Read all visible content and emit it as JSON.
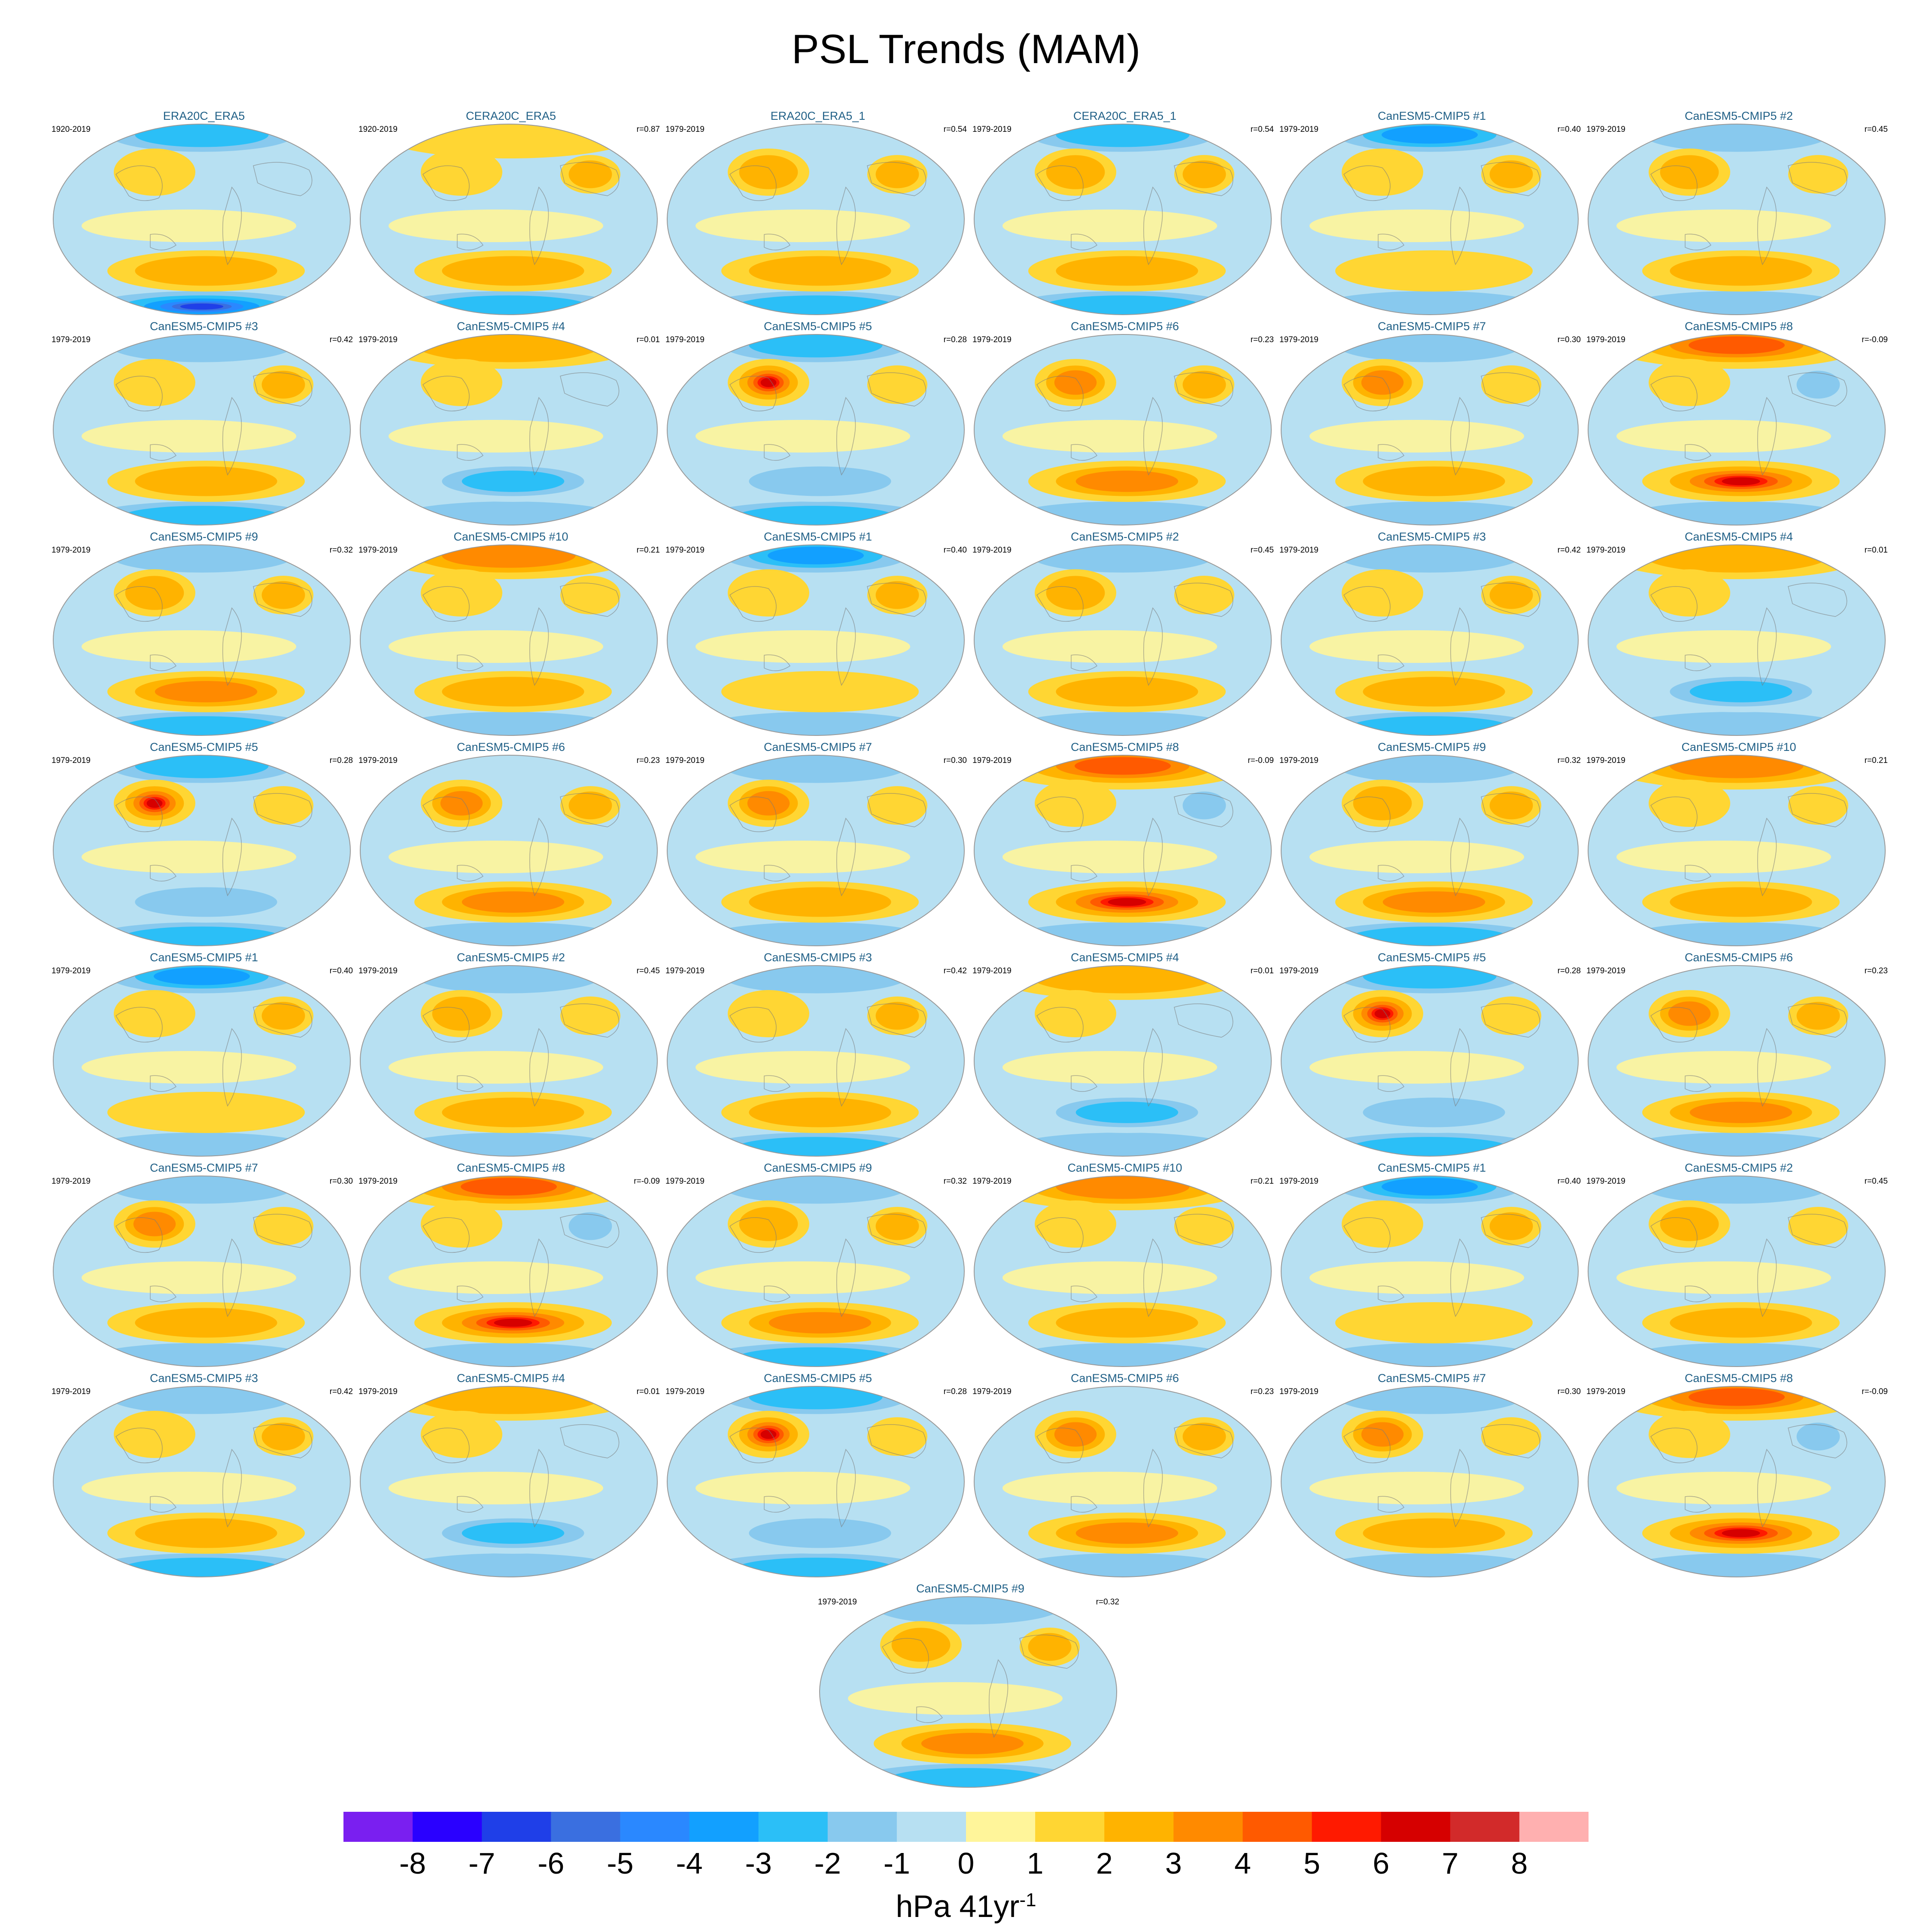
{
  "chart_data": {
    "type": "heatmap",
    "title": "PSL Trends (MAM)",
    "colorbar": {
      "ticks": [
        "-8",
        "-7",
        "-6",
        "-5",
        "-4",
        "-3",
        "-2",
        "-1",
        "0",
        "1",
        "2",
        "3",
        "4",
        "5",
        "6",
        "7",
        "8"
      ],
      "colors": [
        "#7a1ff0",
        "#2a00ff",
        "#1f3fe8",
        "#3a6fe0",
        "#2a88ff",
        "#12a0ff",
        "#2bbff7",
        "#88c9ee",
        "#b7e0f2",
        "#fff59a",
        "#ffd633",
        "#ffb300",
        "#ff8a00",
        "#ff5a00",
        "#ff1a00",
        "#d60000",
        "#d22a2a",
        "#ffb0b0"
      ],
      "units_main": "hPa 41yr",
      "units_sup": "-1"
    },
    "panels": [
      {
        "title": "ERA20C_ERA5",
        "period": "1920-2019",
        "corr": "",
        "pattern": {
          "north": -3,
          "n_pac": 1,
          "n_atl": 0,
          "s_mid": 2,
          "s_ring": -7
        }
      },
      {
        "title": "CERA20C_ERA5",
        "period": "1920-2019",
        "corr": "r=0.87",
        "pattern": {
          "north": 1,
          "n_pac": 1,
          "n_atl": 2,
          "s_mid": 2,
          "s_ring": -3
        }
      },
      {
        "title": "ERA20C_ERA5_1",
        "period": "1979-2019",
        "corr": "r=0.54",
        "pattern": {
          "north": -1,
          "n_pac": 2,
          "n_atl": 2,
          "s_mid": 2,
          "s_ring": -3
        }
      },
      {
        "title": "CERA20C_ERA5_1",
        "period": "1979-2019",
        "corr": "r=0.54",
        "pattern": {
          "north": -3,
          "n_pac": 2,
          "n_atl": 2,
          "s_mid": 2,
          "s_ring": -3
        }
      },
      {
        "title": "CanESM5-CMIP5 #1",
        "period": "1979-2019",
        "corr": "r=0.40",
        "pattern": {
          "north": -4,
          "n_pac": 1,
          "n_atl": 2,
          "s_mid": 1,
          "s_ring": -2
        }
      },
      {
        "title": "CanESM5-CMIP5 #2",
        "period": "1979-2019",
        "corr": "r=0.45",
        "pattern": {
          "north": -2,
          "n_pac": 2,
          "n_atl": 1,
          "s_mid": 2,
          "s_ring": -2
        }
      },
      {
        "title": "CanESM5-CMIP5 #3",
        "period": "1979-2019",
        "corr": "r=0.42",
        "pattern": {
          "north": -2,
          "n_pac": 1,
          "n_atl": 2,
          "s_mid": 2,
          "s_ring": -3
        }
      },
      {
        "title": "CanESM5-CMIP5 #4",
        "period": "1979-2019",
        "corr": "r=0.01",
        "pattern": {
          "north": 2,
          "n_pac": 1,
          "n_atl": -1,
          "s_mid": -3,
          "s_ring": -2
        }
      },
      {
        "title": "CanESM5-CMIP5 #5",
        "period": "1979-2019",
        "corr": "r=0.28",
        "pattern": {
          "north": -3,
          "n_pac": 6,
          "n_atl": 1,
          "s_mid": -2,
          "s_ring": -3
        }
      },
      {
        "title": "CanESM5-CMIP5 #6",
        "period": "1979-2019",
        "corr": "r=0.23",
        "pattern": {
          "north": -1,
          "n_pac": 3,
          "n_atl": 2,
          "s_mid": 3,
          "s_ring": -2
        }
      },
      {
        "title": "CanESM5-CMIP5 #7",
        "period": "1979-2019",
        "corr": "r=0.30",
        "pattern": {
          "north": -2,
          "n_pac": 3,
          "n_atl": 1,
          "s_mid": 2,
          "s_ring": -2
        }
      },
      {
        "title": "CanESM5-CMIP5 #8",
        "period": "1979-2019",
        "corr": "r=-0.09",
        "pattern": {
          "north": 4,
          "n_pac": 1,
          "n_atl": -2,
          "s_mid": 6,
          "s_ring": -2
        }
      },
      {
        "title": "CanESM5-CMIP5 #9",
        "period": "1979-2019",
        "corr": "r=0.32",
        "pattern": {
          "north": -2,
          "n_pac": 2,
          "n_atl": 2,
          "s_mid": 3,
          "s_ring": -3
        }
      },
      {
        "title": "CanESM5-CMIP5 #10",
        "period": "1979-2019",
        "corr": "r=0.21",
        "pattern": {
          "north": 3,
          "n_pac": 1,
          "n_atl": 1,
          "s_mid": 2,
          "s_ring": -2
        }
      },
      {
        "title": "CanESM5-CMIP5 #1",
        "period": "1979-2019",
        "corr": "r=0.40",
        "pattern": {
          "north": -4,
          "n_pac": 1,
          "n_atl": 2,
          "s_mid": 1,
          "s_ring": -2
        }
      },
      {
        "title": "CanESM5-CMIP5 #2",
        "period": "1979-2019",
        "corr": "r=0.45",
        "pattern": {
          "north": -2,
          "n_pac": 2,
          "n_atl": 1,
          "s_mid": 2,
          "s_ring": -2
        }
      },
      {
        "title": "CanESM5-CMIP5 #3",
        "period": "1979-2019",
        "corr": "r=0.42",
        "pattern": {
          "north": -2,
          "n_pac": 1,
          "n_atl": 2,
          "s_mid": 2,
          "s_ring": -3
        }
      },
      {
        "title": "CanESM5-CMIP5 #4",
        "period": "1979-2019",
        "corr": "r=0.01",
        "pattern": {
          "north": 2,
          "n_pac": 1,
          "n_atl": -1,
          "s_mid": -3,
          "s_ring": -2
        }
      },
      {
        "title": "CanESM5-CMIP5 #5",
        "period": "1979-2019",
        "corr": "r=0.28",
        "pattern": {
          "north": -3,
          "n_pac": 6,
          "n_atl": 1,
          "s_mid": -2,
          "s_ring": -3
        }
      },
      {
        "title": "CanESM5-CMIP5 #6",
        "period": "1979-2019",
        "corr": "r=0.23",
        "pattern": {
          "north": -1,
          "n_pac": 3,
          "n_atl": 2,
          "s_mid": 3,
          "s_ring": -2
        }
      },
      {
        "title": "CanESM5-CMIP5 #7",
        "period": "1979-2019",
        "corr": "r=0.30",
        "pattern": {
          "north": -2,
          "n_pac": 3,
          "n_atl": 1,
          "s_mid": 2,
          "s_ring": -2
        }
      },
      {
        "title": "CanESM5-CMIP5 #8",
        "period": "1979-2019",
        "corr": "r=-0.09",
        "pattern": {
          "north": 4,
          "n_pac": 1,
          "n_atl": -2,
          "s_mid": 6,
          "s_ring": -2
        }
      },
      {
        "title": "CanESM5-CMIP5 #9",
        "period": "1979-2019",
        "corr": "r=0.32",
        "pattern": {
          "north": -2,
          "n_pac": 2,
          "n_atl": 2,
          "s_mid": 3,
          "s_ring": -3
        }
      },
      {
        "title": "CanESM5-CMIP5 #10",
        "period": "1979-2019",
        "corr": "r=0.21",
        "pattern": {
          "north": 3,
          "n_pac": 1,
          "n_atl": 1,
          "s_mid": 2,
          "s_ring": -2
        }
      },
      {
        "title": "CanESM5-CMIP5 #1",
        "period": "1979-2019",
        "corr": "r=0.40",
        "pattern": {
          "north": -4,
          "n_pac": 1,
          "n_atl": 2,
          "s_mid": 1,
          "s_ring": -2
        }
      },
      {
        "title": "CanESM5-CMIP5 #2",
        "period": "1979-2019",
        "corr": "r=0.45",
        "pattern": {
          "north": -2,
          "n_pac": 2,
          "n_atl": 1,
          "s_mid": 2,
          "s_ring": -2
        }
      },
      {
        "title": "CanESM5-CMIP5 #3",
        "period": "1979-2019",
        "corr": "r=0.42",
        "pattern": {
          "north": -2,
          "n_pac": 1,
          "n_atl": 2,
          "s_mid": 2,
          "s_ring": -3
        }
      },
      {
        "title": "CanESM5-CMIP5 #4",
        "period": "1979-2019",
        "corr": "r=0.01",
        "pattern": {
          "north": 2,
          "n_pac": 1,
          "n_atl": -1,
          "s_mid": -3,
          "s_ring": -2
        }
      },
      {
        "title": "CanESM5-CMIP5 #5",
        "period": "1979-2019",
        "corr": "r=0.28",
        "pattern": {
          "north": -3,
          "n_pac": 6,
          "n_atl": 1,
          "s_mid": -2,
          "s_ring": -3
        }
      },
      {
        "title": "CanESM5-CMIP5 #6",
        "period": "1979-2019",
        "corr": "r=0.23",
        "pattern": {
          "north": -1,
          "n_pac": 3,
          "n_atl": 2,
          "s_mid": 3,
          "s_ring": -2
        }
      },
      {
        "title": "CanESM5-CMIP5 #7",
        "period": "1979-2019",
        "corr": "r=0.30",
        "pattern": {
          "north": -2,
          "n_pac": 3,
          "n_atl": 1,
          "s_mid": 2,
          "s_ring": -2
        }
      },
      {
        "title": "CanESM5-CMIP5 #8",
        "period": "1979-2019",
        "corr": "r=-0.09",
        "pattern": {
          "north": 4,
          "n_pac": 1,
          "n_atl": -2,
          "s_mid": 6,
          "s_ring": -2
        }
      },
      {
        "title": "CanESM5-CMIP5 #9",
        "period": "1979-2019",
        "corr": "r=0.32",
        "pattern": {
          "north": -2,
          "n_pac": 2,
          "n_atl": 2,
          "s_mid": 3,
          "s_ring": -3
        }
      },
      {
        "title": "CanESM5-CMIP5 #10",
        "period": "1979-2019",
        "corr": "r=0.21",
        "pattern": {
          "north": 3,
          "n_pac": 1,
          "n_atl": 1,
          "s_mid": 2,
          "s_ring": -2
        }
      },
      {
        "title": "CanESM5-CMIP5 #1",
        "period": "1979-2019",
        "corr": "r=0.40",
        "pattern": {
          "north": -4,
          "n_pac": 1,
          "n_atl": 2,
          "s_mid": 1,
          "s_ring": -2
        }
      },
      {
        "title": "CanESM5-CMIP5 #2",
        "period": "1979-2019",
        "corr": "r=0.45",
        "pattern": {
          "north": -2,
          "n_pac": 2,
          "n_atl": 1,
          "s_mid": 2,
          "s_ring": -2
        }
      },
      {
        "title": "CanESM5-CMIP5 #3",
        "period": "1979-2019",
        "corr": "r=0.42",
        "pattern": {
          "north": -2,
          "n_pac": 1,
          "n_atl": 2,
          "s_mid": 2,
          "s_ring": -3
        }
      },
      {
        "title": "CanESM5-CMIP5 #4",
        "period": "1979-2019",
        "corr": "r=0.01",
        "pattern": {
          "north": 2,
          "n_pac": 1,
          "n_atl": -1,
          "s_mid": -3,
          "s_ring": -2
        }
      },
      {
        "title": "CanESM5-CMIP5 #5",
        "period": "1979-2019",
        "corr": "r=0.28",
        "pattern": {
          "north": -3,
          "n_pac": 6,
          "n_atl": 1,
          "s_mid": -2,
          "s_ring": -3
        }
      },
      {
        "title": "CanESM5-CMIP5 #6",
        "period": "1979-2019",
        "corr": "r=0.23",
        "pattern": {
          "north": -1,
          "n_pac": 3,
          "n_atl": 2,
          "s_mid": 3,
          "s_ring": -2
        }
      },
      {
        "title": "CanESM5-CMIP5 #7",
        "period": "1979-2019",
        "corr": "r=0.30",
        "pattern": {
          "north": -2,
          "n_pac": 3,
          "n_atl": 1,
          "s_mid": 2,
          "s_ring": -2
        }
      },
      {
        "title": "CanESM5-CMIP5 #8",
        "period": "1979-2019",
        "corr": "r=-0.09",
        "pattern": {
          "north": 4,
          "n_pac": 1,
          "n_atl": -2,
          "s_mid": 6,
          "s_ring": -2
        }
      },
      {
        "title": "CanESM5-CMIP5 #9",
        "period": "1979-2019",
        "corr": "r=0.32",
        "pattern": {
          "north": -2,
          "n_pac": 2,
          "n_atl": 2,
          "s_mid": 3,
          "s_ring": -3
        }
      }
    ]
  }
}
